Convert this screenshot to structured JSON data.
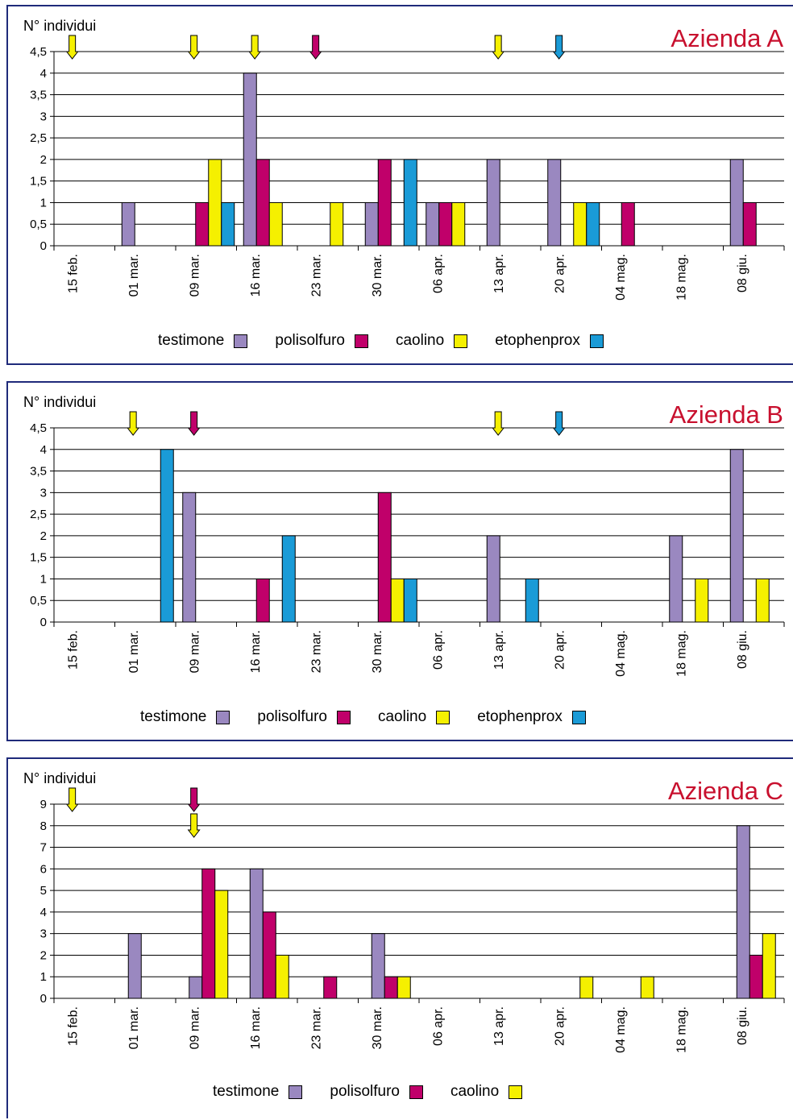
{
  "colors": {
    "testimone": "#9a88c0",
    "polisolfuro": "#c0006a",
    "caolino": "#f5f000",
    "etophenprox": "#1a9bd7",
    "title": "#c8102e",
    "border": "#1f2a7a"
  },
  "chart_data": [
    {
      "type": "bar",
      "title": "Azienda A",
      "ylabel": "N° individui",
      "ylim": [
        0,
        4.5
      ],
      "yticks": [
        "0",
        "0,5",
        "1",
        "1,5",
        "2",
        "2,5",
        "3",
        "3,5",
        "4",
        "4,5"
      ],
      "categories": [
        "15 feb.",
        "01 mar.",
        "09 mar.",
        "16 mar.",
        "23 mar.",
        "30 mar.",
        "06 apr.",
        "13 apr.",
        "20 apr.",
        "04 mag.",
        "18 mag.",
        "08 giu."
      ],
      "series": [
        {
          "name": "testimone",
          "values": [
            0,
            1,
            0,
            4,
            0,
            1,
            1,
            2,
            2,
            0,
            0,
            2
          ]
        },
        {
          "name": "polisolfuro",
          "values": [
            0,
            0,
            1,
            2,
            0,
            2,
            1,
            0,
            0,
            1,
            0,
            1
          ]
        },
        {
          "name": "caolino",
          "values": [
            0,
            0,
            2,
            1,
            1,
            0,
            1,
            0,
            1,
            0,
            0,
            0
          ]
        },
        {
          "name": "etophenprox",
          "values": [
            0,
            0,
            1,
            0,
            0,
            2,
            0,
            0,
            1,
            0,
            0,
            0
          ]
        }
      ],
      "treatments": [
        {
          "product": "caolino",
          "date": "15 feb."
        },
        {
          "product": "caolino",
          "date": "09 mar."
        },
        {
          "product": "caolino",
          "date": "16 mar."
        },
        {
          "product": "polisolfuro",
          "date": "23 mar."
        },
        {
          "product": "caolino",
          "date": "13 apr."
        },
        {
          "product": "etophenprox",
          "date": "20 apr."
        }
      ],
      "legend": [
        "testimone",
        "polisolfuro",
        "caolino",
        "etophenprox"
      ]
    },
    {
      "type": "bar",
      "title": "Azienda B",
      "ylabel": "N° individui",
      "ylim": [
        0,
        4.5
      ],
      "yticks": [
        "0",
        "0,5",
        "1",
        "1,5",
        "2",
        "2,5",
        "3",
        "3,5",
        "4",
        "4,5"
      ],
      "categories": [
        "15 feb.",
        "01 mar.",
        "09 mar.",
        "16 mar.",
        "23 mar.",
        "30 mar.",
        "06 apr.",
        "13 apr.",
        "20 apr.",
        "04 mag.",
        "18 mag.",
        "08 giu."
      ],
      "series": [
        {
          "name": "testimone",
          "values": [
            0,
            0,
            3,
            0,
            0,
            0,
            0,
            2,
            0,
            0,
            2,
            4
          ]
        },
        {
          "name": "polisolfuro",
          "values": [
            0,
            0,
            0,
            1,
            0,
            3,
            0,
            0,
            0,
            0,
            0,
            0
          ]
        },
        {
          "name": "caolino",
          "values": [
            0,
            0,
            0,
            0,
            0,
            1,
            0,
            0,
            0,
            0,
            1,
            1
          ]
        },
        {
          "name": "etophenprox",
          "values": [
            0,
            4,
            0,
            2,
            0,
            1,
            0,
            1,
            0,
            0,
            0,
            0
          ]
        }
      ],
      "treatments": [
        {
          "product": "caolino",
          "date": "01 mar."
        },
        {
          "product": "polisolfuro",
          "date": "09 mar."
        },
        {
          "product": "caolino",
          "date": "13 apr."
        },
        {
          "product": "etophenprox",
          "date": "20 apr."
        }
      ],
      "legend": [
        "testimone",
        "polisolfuro",
        "caolino",
        "etophenprox"
      ]
    },
    {
      "type": "bar",
      "title": "Azienda C",
      "ylabel": "N° individui",
      "ylim": [
        0,
        9
      ],
      "yticks": [
        "0",
        "1",
        "2",
        "3",
        "4",
        "5",
        "6",
        "7",
        "8",
        "9"
      ],
      "categories": [
        "15 feb.",
        "01 mar.",
        "09 mar.",
        "16 mar.",
        "23 mar.",
        "30 mar.",
        "06 apr.",
        "13 apr.",
        "20 apr.",
        "04 mag.",
        "18 mag.",
        "08 giu."
      ],
      "series": [
        {
          "name": "testimone",
          "values": [
            0,
            3,
            1,
            6,
            0,
            3,
            0,
            0,
            0,
            0,
            0,
            8
          ]
        },
        {
          "name": "polisolfuro",
          "values": [
            0,
            0,
            6,
            4,
            1,
            1,
            0,
            0,
            0,
            0,
            0,
            2
          ]
        },
        {
          "name": "caolino",
          "values": [
            0,
            0,
            5,
            2,
            0,
            1,
            0,
            0,
            1,
            1,
            0,
            3
          ]
        }
      ],
      "treatments": [
        {
          "product": "caolino",
          "date": "15 feb."
        },
        {
          "product": "polisolfuro",
          "date": "09 mar."
        },
        {
          "product": "caolino",
          "date": "09 mar."
        }
      ],
      "legend": [
        "testimone",
        "polisolfuro",
        "caolino"
      ]
    }
  ]
}
